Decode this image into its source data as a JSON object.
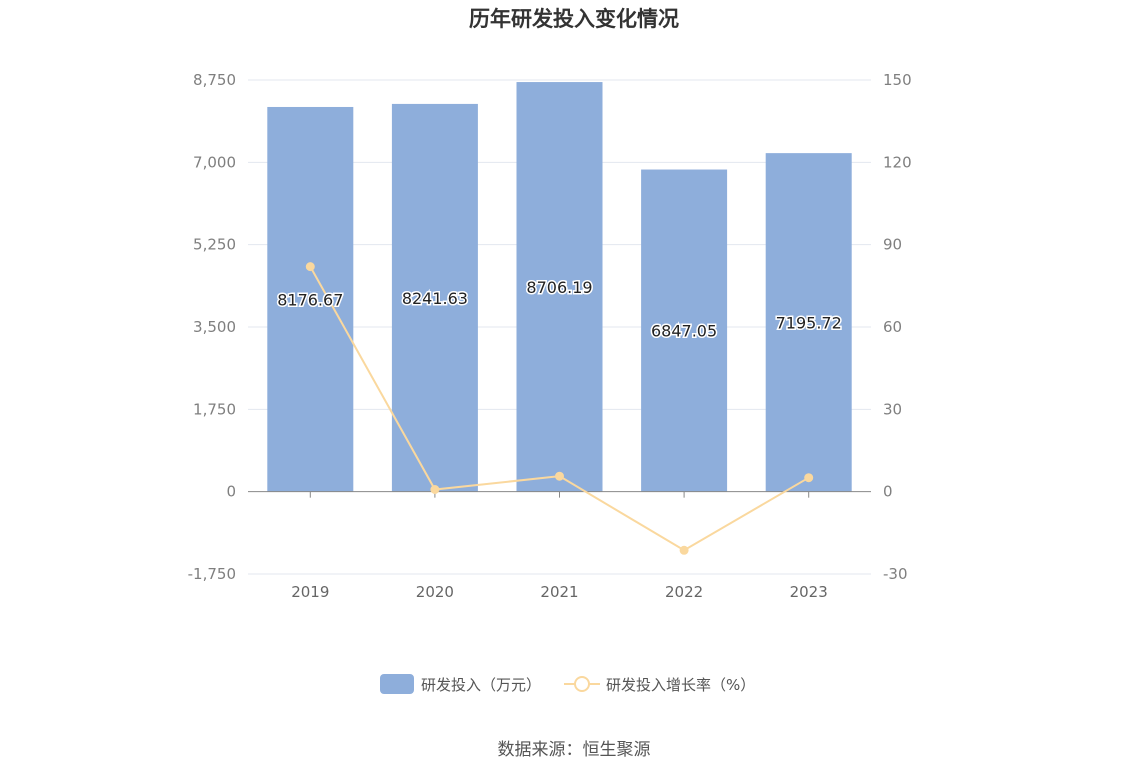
{
  "chart_data": {
    "type": "bar",
    "title": "历年研发投入变化情况",
    "categories": [
      "2019",
      "2020",
      "2021",
      "2022",
      "2023"
    ],
    "series": [
      {
        "name": "研发投入（万元）",
        "type": "bar",
        "axis": "left",
        "values": [
          8176.67,
          8241.63,
          8706.19,
          6847.05,
          7195.72
        ],
        "labels": [
          "8176.67",
          "8241.63",
          "8706.19",
          "6847.05",
          "7195.72"
        ],
        "color": "#8eaedb"
      },
      {
        "name": "研发投入增长率（%）",
        "type": "line",
        "axis": "right",
        "values": [
          82.0,
          0.79,
          5.64,
          -21.35,
          5.09
        ],
        "color": "#fad89e"
      }
    ],
    "y_left": {
      "ylim": [
        -1750,
        8750
      ],
      "ticks": [
        -1750,
        0,
        1750,
        3500,
        5250,
        7000,
        8750
      ],
      "tick_labels": [
        "-1,750",
        "0",
        "1,750",
        "3,500",
        "5,250",
        "7,000",
        "8,750"
      ]
    },
    "y_right": {
      "ylim": [
        -30,
        150
      ],
      "ticks": [
        -30,
        0,
        30,
        60,
        90,
        120,
        150
      ],
      "tick_labels": [
        "-30",
        "0",
        "30",
        "60",
        "90",
        "120",
        "150"
      ]
    },
    "grid": true,
    "legend_position": "bottom-center"
  },
  "source_text": "数据来源：恒生聚源"
}
